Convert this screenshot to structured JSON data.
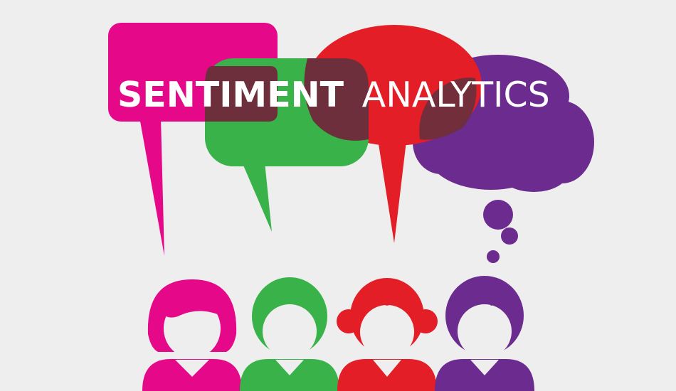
{
  "title": {
    "bold": "SENTIMENT",
    "light": "ANALYTICS"
  },
  "colors": {
    "background": "#efeeee",
    "magenta": "#e5098a",
    "green": "#39b24a",
    "red": "#e41e26",
    "purple": "#6c2b8f",
    "overlap_dark": "#6d2f3c",
    "face": "#efeeee",
    "title_text": "#ffffff"
  },
  "people": [
    {
      "name": "magenta-person",
      "color_key": "magenta",
      "hair": "bob"
    },
    {
      "name": "green-person",
      "color_key": "green",
      "hair": "short"
    },
    {
      "name": "red-person",
      "color_key": "red",
      "hair": "pigtails"
    },
    {
      "name": "purple-person",
      "color_key": "purple",
      "hair": "parted"
    }
  ],
  "bubbles": [
    {
      "name": "magenta-speech-bubble",
      "kind": "speech"
    },
    {
      "name": "green-speech-bubble",
      "kind": "speech"
    },
    {
      "name": "red-speech-bubble",
      "kind": "speech"
    },
    {
      "name": "purple-thought-cloud",
      "kind": "thought"
    }
  ]
}
